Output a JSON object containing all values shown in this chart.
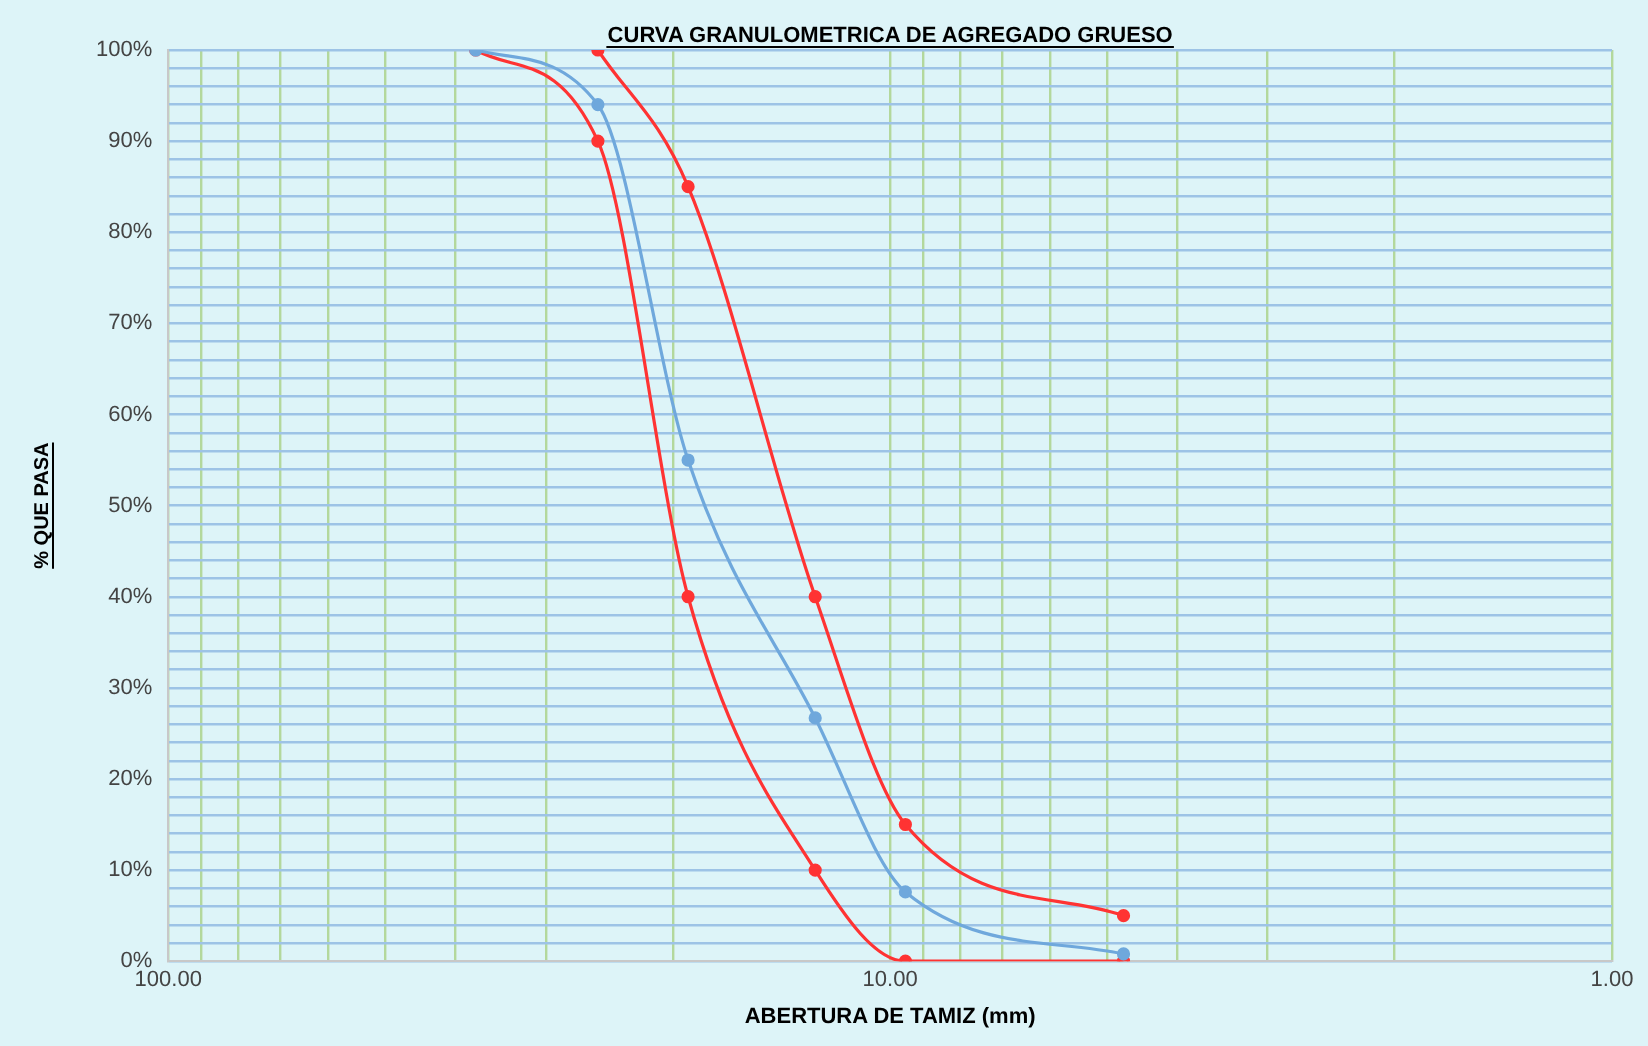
{
  "chart_data": {
    "type": "line",
    "title": "CURVA GRANULOMETRICA DE AGREGADO GRUESO",
    "xlabel": "ABERTURA DE TAMIZ (mm)",
    "ylabel": "% QUE PASA",
    "series": [
      {
        "color": "#ff3333",
        "x": [
          25.4,
          19.05,
          12.7,
          9.525,
          4.75
        ],
        "values": [
          100,
          85,
          40,
          15,
          5
        ]
      },
      {
        "color": "#6fa8dc",
        "x": [
          37.5,
          25.4,
          19.05,
          12.7,
          9.525,
          4.75
        ],
        "values": [
          100,
          94,
          55,
          26.7,
          7.6,
          0.8
        ]
      },
      {
        "color": "#ff3333",
        "x": [
          37.5,
          25.4,
          19.05,
          12.7,
          9.525,
          4.75
        ],
        "values": [
          100,
          90,
          40,
          10,
          0,
          0
        ]
      }
    ],
    "log": "x",
    "xlim": [
      100,
      1
    ],
    "xticks": [
      {
        "value": 100,
        "label": "100.00"
      },
      {
        "value": 90,
        "label": null
      },
      {
        "value": 80,
        "label": null
      },
      {
        "value": 70,
        "label": null
      },
      {
        "value": 60,
        "label": null
      },
      {
        "value": 50,
        "label": null
      },
      {
        "value": 40,
        "label": null
      },
      {
        "value": 30,
        "label": null
      },
      {
        "value": 20,
        "label": null
      },
      {
        "value": 10,
        "label": "10.00"
      },
      {
        "value": 9,
        "label": null
      },
      {
        "value": 8,
        "label": null
      },
      {
        "value": 7,
        "label": null
      },
      {
        "value": 6,
        "label": null
      },
      {
        "value": 5,
        "label": null
      },
      {
        "value": 4,
        "label": null
      },
      {
        "value": 3,
        "label": null
      },
      {
        "value": 2,
        "label": null
      },
      {
        "value": 1,
        "label": "1.00"
      }
    ],
    "ylim": [
      0,
      100
    ],
    "yticks": [
      {
        "value": 0,
        "label": "0%"
      },
      {
        "value": 2,
        "label": null
      },
      {
        "value": 4,
        "label": null
      },
      {
        "value": 6,
        "label": null
      },
      {
        "value": 8,
        "label": null
      },
      {
        "value": 10,
        "label": "10%"
      },
      {
        "value": 12,
        "label": null
      },
      {
        "value": 14,
        "label": null
      },
      {
        "value": 16,
        "label": null
      },
      {
        "value": 18,
        "label": null
      },
      {
        "value": 20,
        "label": "20%"
      },
      {
        "value": 22,
        "label": null
      },
      {
        "value": 24,
        "label": null
      },
      {
        "value": 26,
        "label": null
      },
      {
        "value": 28,
        "label": null
      },
      {
        "value": 30,
        "label": "30%"
      },
      {
        "value": 32,
        "label": null
      },
      {
        "value": 34,
        "label": null
      },
      {
        "value": 36,
        "label": null
      },
      {
        "value": 38,
        "label": null
      },
      {
        "value": 40,
        "label": "40%"
      },
      {
        "value": 42,
        "label": null
      },
      {
        "value": 44,
        "label": null
      },
      {
        "value": 46,
        "label": null
      },
      {
        "value": 48,
        "label": null
      },
      {
        "value": 50,
        "label": "50%"
      },
      {
        "value": 52,
        "label": null
      },
      {
        "value": 54,
        "label": null
      },
      {
        "value": 56,
        "label": null
      },
      {
        "value": 58,
        "label": null
      },
      {
        "value": 60,
        "label": "60%"
      },
      {
        "value": 62,
        "label": null
      },
      {
        "value": 64,
        "label": null
      },
      {
        "value": 66,
        "label": null
      },
      {
        "value": 68,
        "label": null
      },
      {
        "value": 70,
        "label": "70%"
      },
      {
        "value": 72,
        "label": null
      },
      {
        "value": 74,
        "label": null
      },
      {
        "value": 76,
        "label": null
      },
      {
        "value": 78,
        "label": null
      },
      {
        "value": 80,
        "label": "80%"
      },
      {
        "value": 82,
        "label": null
      },
      {
        "value": 84,
        "label": null
      },
      {
        "value": 86,
        "label": null
      },
      {
        "value": 88,
        "label": null
      },
      {
        "value": 90,
        "label": "90%"
      },
      {
        "value": 92,
        "label": null
      },
      {
        "value": 94,
        "label": null
      },
      {
        "value": 96,
        "label": null
      },
      {
        "value": 98,
        "label": null
      },
      {
        "value": 100,
        "label": "100%"
      }
    ],
    "grid": true,
    "legend": false,
    "marker": "circle",
    "line_style": "solid"
  }
}
